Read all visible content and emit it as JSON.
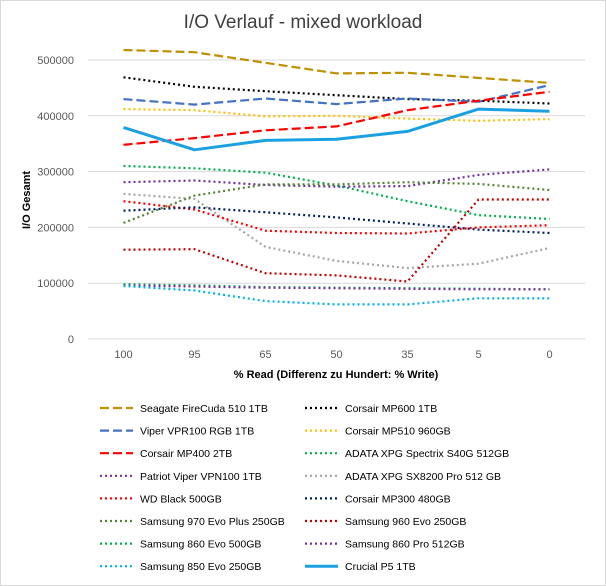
{
  "chart_data": {
    "type": "line",
    "title": "I/O Verlauf - mixed workload",
    "xlabel": "% Read (Differenz zu Hundert: % Write)",
    "ylabel": "I/O Gesamt",
    "categories": [
      "100",
      "95",
      "65",
      "50",
      "35",
      "5",
      "0"
    ],
    "ylim": [
      0,
      500000
    ],
    "yticks": [
      "0",
      "100000",
      "200000",
      "300000",
      "400000",
      "500000"
    ],
    "grid": true,
    "legend_position": "bottom",
    "series": [
      {
        "name": "Seagate FireCuda 510 1TB",
        "color": "#bf9000",
        "dash": "long",
        "values": [
          518000,
          514000,
          495000,
          476000,
          477000,
          468000,
          459000
        ]
      },
      {
        "name": "Corsair MP600 1TB",
        "color": "#000000",
        "dash": "dot",
        "values": [
          469000,
          452000,
          444000,
          437000,
          430000,
          427000,
          422000
        ]
      },
      {
        "name": "Viper VPR100 RGB 1TB",
        "color": "#4472c4",
        "dash": "long",
        "values": [
          430000,
          420000,
          431000,
          421000,
          431000,
          425000,
          455000
        ]
      },
      {
        "name": "Corsair MP510 960GB",
        "color": "#ffc000",
        "dash": "dot",
        "values": [
          412000,
          410000,
          399000,
          400000,
          395000,
          391000,
          394000
        ]
      },
      {
        "name": "Corsair MP400 2TB",
        "color": "#ff0000",
        "dash": "long",
        "values": [
          348000,
          360000,
          374000,
          381000,
          410000,
          427000,
          443000
        ]
      },
      {
        "name": "ADATA XPG Spectrix S40G 512GB",
        "color": "#00b050",
        "dash": "dot",
        "values": [
          310000,
          306000,
          298000,
          275000,
          247000,
          222000,
          215000
        ]
      },
      {
        "name": "Patriot Viper VPN100 1TB",
        "color": "#7030a0",
        "dash": "dot",
        "values": [
          281000,
          284000,
          276000,
          273000,
          274000,
          294000,
          304000
        ]
      },
      {
        "name": "ADATA XPG SX8200 Pro 512 GB",
        "color": "#a5a5a5",
        "dash": "dot",
        "values": [
          260000,
          251000,
          165000,
          140000,
          127000,
          135000,
          163000
        ]
      },
      {
        "name": "WD Black 500GB",
        "color": "#ff0000",
        "dash": "dot",
        "values": [
          247000,
          232000,
          194000,
          190000,
          189000,
          200000,
          204000
        ]
      },
      {
        "name": "Corsair MP300 480GB",
        "color": "#002060",
        "dash": "dot",
        "values": [
          230000,
          236000,
          227000,
          218000,
          207000,
          196000,
          190000
        ]
      },
      {
        "name": "Samsung 970 Evo Plus 250GB",
        "color": "#548235",
        "dash": "dot",
        "values": [
          208000,
          257000,
          277000,
          277000,
          281000,
          278000,
          267000
        ]
      },
      {
        "name": "Samsung 960 Evo 250GB",
        "color": "#c00000",
        "dash": "dot",
        "values": [
          160000,
          161000,
          118000,
          114000,
          103000,
          250000,
          250000
        ]
      },
      {
        "name": "Samsung 860 Evo 500GB",
        "color": "#00b050",
        "dash": "dot",
        "values": [
          98000,
          96000,
          93000,
          92000,
          91000,
          90000,
          89000
        ]
      },
      {
        "name": "Samsung 860 Pro 512GB",
        "color": "#7030a0",
        "dash": "dot",
        "values": [
          96000,
          94000,
          92000,
          91000,
          90000,
          89000,
          89000
        ]
      },
      {
        "name": "Samsung 850 Evo 250GB",
        "color": "#00b0f0",
        "dash": "dot",
        "values": [
          95000,
          87000,
          68000,
          62000,
          62000,
          73000,
          73000
        ]
      },
      {
        "name": "Crucial P5 1TB",
        "color": "#1ba1e2",
        "dash": "solid",
        "values": [
          379000,
          339000,
          356000,
          358000,
          372000,
          412000,
          408000
        ]
      }
    ]
  }
}
